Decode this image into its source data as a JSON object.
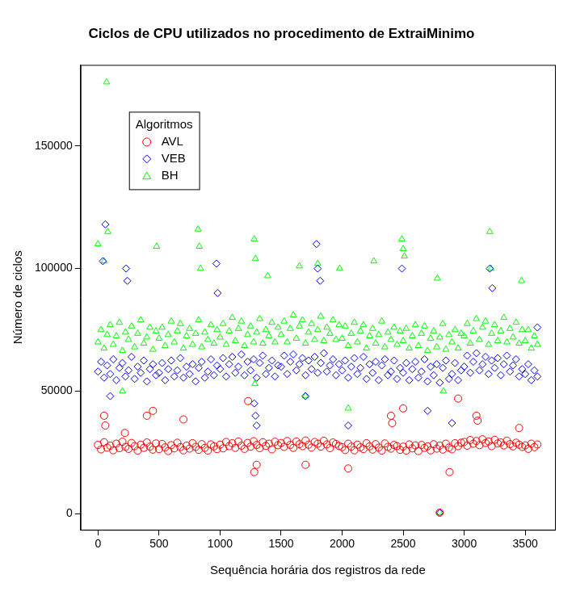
{
  "chart_data": {
    "type": "scatter",
    "title": "Ciclos de CPU utilizados no procedimento de ExtraiMinimo",
    "x_label": "Sequência horária dos registros da rede",
    "y_label": "Número de ciclos",
    "legend_title": "Algoritmos",
    "legend": "top-left",
    "grid": false,
    "xlim": [
      -143,
      3744
    ],
    "xticks": [
      0,
      500,
      1000,
      1500,
      2000,
      2500,
      3000,
      3500
    ],
    "ylim": [
      -6500,
      183000
    ],
    "yticks": [
      0,
      50000,
      100000,
      150000
    ],
    "series": [
      {
        "name": "AVL",
        "color": "#ff0000",
        "marker": "circle",
        "x": [
          0,
          25,
          50,
          75,
          100,
          125,
          150,
          175,
          200,
          225,
          250,
          275,
          300,
          325,
          350,
          375,
          400,
          425,
          450,
          475,
          500,
          525,
          550,
          575,
          600,
          625,
          650,
          675,
          700,
          725,
          750,
          775,
          800,
          825,
          850,
          875,
          900,
          925,
          950,
          975,
          1000,
          1025,
          1050,
          1075,
          1100,
          1125,
          1150,
          1175,
          1200,
          1225,
          1250,
          1275,
          1300,
          1325,
          1350,
          1375,
          1400,
          1425,
          1450,
          1475,
          1500,
          1525,
          1550,
          1575,
          1600,
          1625,
          1650,
          1675,
          1700,
          1725,
          1750,
          1775,
          1800,
          1825,
          1850,
          1875,
          1900,
          1925,
          1950,
          1975,
          2000,
          2025,
          2050,
          2075,
          2100,
          2125,
          2150,
          2175,
          2200,
          2225,
          2250,
          2275,
          2300,
          2325,
          2350,
          2375,
          2400,
          2425,
          2450,
          2475,
          2500,
          2525,
          2550,
          2575,
          2600,
          2625,
          2650,
          2675,
          2700,
          2725,
          2750,
          2775,
          2800,
          2825,
          2850,
          2875,
          2900,
          2925,
          2950,
          2975,
          3000,
          3025,
          3050,
          3075,
          3100,
          3125,
          3150,
          3175,
          3200,
          3225,
          3250,
          3275,
          3300,
          3325,
          3350,
          3375,
          3400,
          3425,
          3450,
          3475,
          3500,
          3525,
          3550,
          3575,
          3600,
          50,
          60,
          220,
          400,
          450,
          700,
          1230,
          1280,
          1300,
          1700,
          2050,
          2400,
          2410,
          2500,
          2800,
          2880,
          2950,
          3100,
          3110,
          3450
        ],
        "values": [
          28100,
          26300,
          29200,
          27000,
          27800,
          25900,
          28600,
          26800,
          29400,
          27300,
          26500,
          28900,
          27600,
          25800,
          28200,
          26900,
          29100,
          27400,
          26200,
          28700,
          26400,
          28500,
          27100,
          25600,
          28000,
          26700,
          29000,
          27200,
          25900,
          27800,
          26600,
          28800,
          27300,
          26100,
          28400,
          26900,
          25800,
          28300,
          27500,
          26400,
          28200,
          26700,
          29300,
          27600,
          28800,
          26900,
          29500,
          27800,
          26500,
          28900,
          27400,
          29600,
          28100,
          26800,
          29200,
          27700,
          28600,
          26300,
          29400,
          28000,
          28900,
          27300,
          29700,
          28100,
          26900,
          29500,
          28400,
          27600,
          29900,
          28200,
          27000,
          29300,
          28600,
          27400,
          29800,
          28300,
          26800,
          29100,
          28500,
          27700,
          27200,
          26000,
          28600,
          27400,
          25900,
          28200,
          27100,
          26400,
          28800,
          27500,
          26200,
          28400,
          27000,
          25800,
          28700,
          27300,
          26600,
          28100,
          27600,
          26100,
          27400,
          25800,
          28300,
          26700,
          27900,
          25600,
          28100,
          26900,
          27500,
          25900,
          28400,
          26600,
          27800,
          26200,
          28600,
          27000,
          26300,
          28800,
          27600,
          29000,
          29300,
          27800,
          30100,
          28600,
          29700,
          28000,
          30400,
          28900,
          29500,
          27600,
          30200,
          28700,
          29100,
          27900,
          29800,
          28400,
          27500,
          29000,
          28200,
          27300,
          27900,
          26500,
          28600,
          27200,
          28300,
          40000,
          36000,
          33000,
          40000,
          42000,
          38500,
          46000,
          17000,
          20000,
          20000,
          18500,
          40000,
          37000,
          43000,
          500,
          17000,
          47000,
          40000,
          38000,
          35000
        ]
      },
      {
        "name": "VEB",
        "color": "#0000ff",
        "marker": "diamond",
        "x": [
          0,
          25,
          50,
          75,
          100,
          125,
          150,
          175,
          200,
          225,
          250,
          275,
          300,
          325,
          350,
          375,
          400,
          425,
          450,
          475,
          500,
          525,
          550,
          575,
          600,
          625,
          650,
          675,
          700,
          725,
          750,
          775,
          800,
          825,
          850,
          875,
          900,
          925,
          950,
          975,
          1000,
          1025,
          1050,
          1075,
          1100,
          1125,
          1150,
          1175,
          1200,
          1225,
          1250,
          1275,
          1300,
          1325,
          1350,
          1375,
          1400,
          1425,
          1450,
          1475,
          1500,
          1525,
          1550,
          1575,
          1600,
          1625,
          1650,
          1675,
          1700,
          1725,
          1750,
          1775,
          1800,
          1825,
          1850,
          1875,
          1900,
          1925,
          1950,
          1975,
          2000,
          2025,
          2050,
          2075,
          2100,
          2125,
          2150,
          2175,
          2200,
          2225,
          2250,
          2275,
          2300,
          2325,
          2350,
          2375,
          2400,
          2425,
          2450,
          2475,
          2500,
          2525,
          2550,
          2575,
          2600,
          2625,
          2650,
          2675,
          2700,
          2725,
          2750,
          2775,
          2800,
          2825,
          2850,
          2875,
          2900,
          2925,
          2950,
          2975,
          3000,
          3025,
          3050,
          3075,
          3100,
          3125,
          3150,
          3175,
          3200,
          3225,
          3250,
          3275,
          3300,
          3325,
          3350,
          3375,
          3400,
          3425,
          3450,
          3475,
          3500,
          3525,
          3550,
          3575,
          3600,
          40,
          60,
          100,
          230,
          240,
          970,
          980,
          1280,
          1290,
          1300,
          1700,
          1790,
          1800,
          1820,
          2050,
          2490,
          2700,
          2800,
          2900,
          3210,
          3230,
          3600
        ],
        "values": [
          58000,
          62000,
          55500,
          60500,
          57000,
          63000,
          54500,
          59500,
          61500,
          56000,
          58500,
          64000,
          55000,
          60000,
          57500,
          62500,
          54000,
          59000,
          61000,
          56500,
          57500,
          61500,
          54500,
          59000,
          62500,
          56000,
          58500,
          63500,
          55500,
          60000,
          57000,
          61000,
          54000,
          59500,
          62000,
          55500,
          58000,
          63000,
          56500,
          60500,
          59000,
          63500,
          56000,
          61000,
          64000,
          57500,
          60000,
          65000,
          56500,
          62000,
          58500,
          63000,
          55500,
          61500,
          64500,
          57000,
          59500,
          62500,
          56000,
          60500,
          60000,
          64500,
          57000,
          62000,
          65000,
          58500,
          61000,
          63500,
          56500,
          62500,
          59000,
          64000,
          57500,
          61500,
          65500,
          58000,
          60500,
          63000,
          56500,
          61000,
          58500,
          62500,
          55500,
          60000,
          63500,
          57000,
          59500,
          64000,
          55000,
          61000,
          57500,
          62000,
          54500,
          60500,
          63000,
          56500,
          58000,
          62500,
          55000,
          59500,
          57500,
          61500,
          54500,
          59000,
          62000,
          55500,
          58000,
          63000,
          54000,
          60000,
          56500,
          61000,
          53500,
          59500,
          62500,
          55000,
          57000,
          61500,
          54500,
          58500,
          60000,
          64500,
          57500,
          62000,
          65500,
          58500,
          61000,
          64000,
          57000,
          62500,
          59500,
          63500,
          56500,
          61000,
          64500,
          58000,
          60500,
          63000,
          56000,
          59000,
          57000,
          61000,
          54500,
          58500,
          56000,
          103000,
          118000,
          48000,
          100000,
          95000,
          102000,
          90000,
          45000,
          40000,
          36000,
          48000,
          110000,
          100000,
          95000,
          36000,
          100000,
          42000,
          500,
          37000,
          100000,
          92000,
          76000
        ]
      },
      {
        "name": "BH",
        "color": "#00ff00",
        "marker": "triangle",
        "x": [
          0,
          25,
          50,
          75,
          100,
          125,
          150,
          175,
          200,
          225,
          250,
          275,
          300,
          325,
          350,
          375,
          400,
          425,
          450,
          475,
          500,
          525,
          550,
          575,
          600,
          625,
          650,
          675,
          700,
          725,
          750,
          775,
          800,
          825,
          850,
          875,
          900,
          925,
          950,
          975,
          1000,
          1025,
          1050,
          1075,
          1100,
          1125,
          1150,
          1175,
          1200,
          1225,
          1250,
          1275,
          1300,
          1325,
          1350,
          1375,
          1400,
          1425,
          1450,
          1475,
          1500,
          1525,
          1550,
          1575,
          1600,
          1625,
          1650,
          1675,
          1700,
          1725,
          1750,
          1775,
          1800,
          1825,
          1850,
          1875,
          1900,
          1925,
          1950,
          1975,
          2000,
          2025,
          2050,
          2075,
          2100,
          2125,
          2150,
          2175,
          2200,
          2225,
          2250,
          2275,
          2300,
          2325,
          2350,
          2375,
          2400,
          2425,
          2450,
          2475,
          2500,
          2525,
          2550,
          2575,
          2600,
          2625,
          2650,
          2675,
          2700,
          2725,
          2750,
          2775,
          2800,
          2825,
          2850,
          2875,
          2900,
          2925,
          2950,
          2975,
          3000,
          3025,
          3050,
          3075,
          3100,
          3125,
          3150,
          3175,
          3200,
          3225,
          3250,
          3275,
          3300,
          3325,
          3350,
          3375,
          3400,
          3425,
          3450,
          3475,
          3500,
          3525,
          3550,
          3575,
          3600,
          0,
          50,
          70,
          80,
          200,
          480,
          820,
          830,
          840,
          1280,
          1285,
          1290,
          1390,
          1650,
          1700,
          1800,
          1980,
          2050,
          2260,
          2490,
          2500,
          2510,
          2780,
          2800,
          2830,
          3210,
          3220,
          3470
        ],
        "values": [
          70000,
          75000,
          67500,
          73000,
          77000,
          69000,
          72500,
          78000,
          66500,
          74000,
          71000,
          76500,
          68000,
          73500,
          79000,
          69500,
          72000,
          76000,
          67000,
          74500,
          71500,
          76000,
          68500,
          73000,
          78500,
          70000,
          74500,
          77500,
          67500,
          72500,
          75500,
          69000,
          73500,
          79000,
          68000,
          74000,
          71000,
          77000,
          69500,
          75000,
          72000,
          77500,
          69000,
          74500,
          80000,
          70500,
          75500,
          78500,
          68500,
          73000,
          76500,
          70000,
          74000,
          79500,
          69500,
          75000,
          72500,
          78000,
          70000,
          76000,
          73000,
          78500,
          70000,
          75500,
          81000,
          71500,
          76500,
          79000,
          69500,
          74000,
          77500,
          71000,
          75000,
          80500,
          70500,
          76000,
          73500,
          79000,
          71000,
          77000,
          71500,
          76500,
          68500,
          73500,
          78000,
          70000,
          74500,
          77000,
          67500,
          72500,
          75500,
          69500,
          73000,
          78500,
          68000,
          74000,
          71000,
          76000,
          69000,
          74500,
          70500,
          75500,
          67500,
          72500,
          77000,
          68500,
          73500,
          76500,
          66500,
          71500,
          74500,
          68000,
          72000,
          77500,
          67000,
          73000,
          70000,
          75000,
          67500,
          73500,
          72500,
          77500,
          69500,
          74500,
          79500,
          71000,
          76000,
          78500,
          69000,
          73500,
          77000,
          70500,
          74500,
          80000,
          70000,
          75500,
          72000,
          78000,
          69500,
          75000,
          70500,
          75000,
          67500,
          72500,
          69000,
          110000,
          103000,
          176000,
          115000,
          50000,
          109000,
          116000,
          109000,
          100000,
          112000,
          53000,
          104000,
          97000,
          101000,
          48000,
          102000,
          100000,
          43000,
          103000,
          112000,
          108000,
          105000,
          96000,
          500,
          50000,
          115000,
          100000,
          95000
        ]
      }
    ]
  }
}
